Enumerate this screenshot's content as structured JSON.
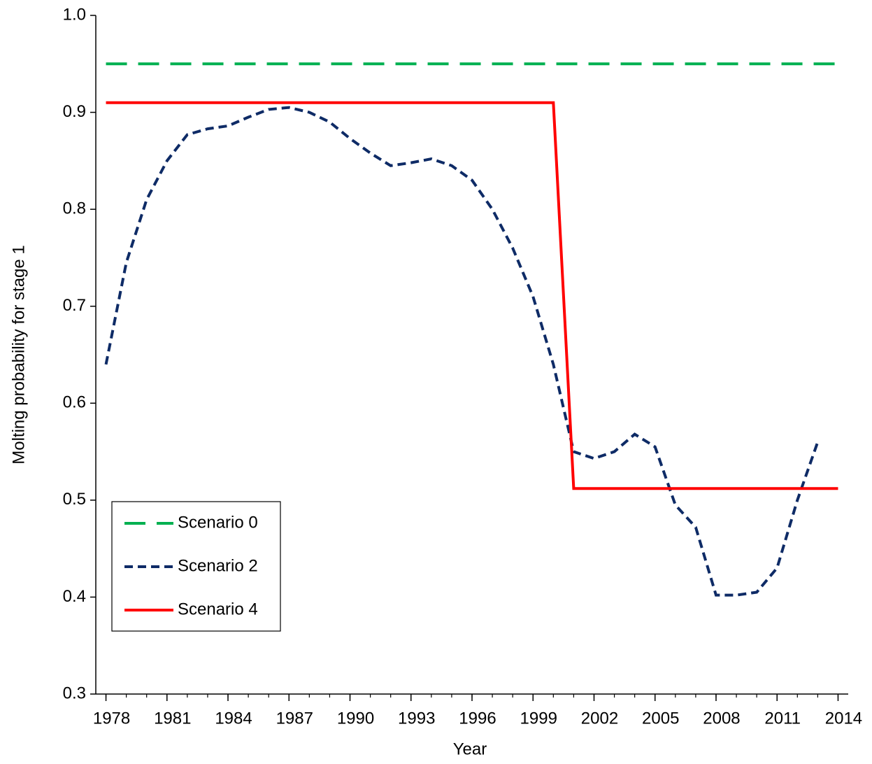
{
  "chart_data": {
    "type": "line",
    "x_label": "Year",
    "y_label": "Molting probability for stage 1",
    "x": [
      1978,
      1979,
      1980,
      1981,
      1982,
      1983,
      1984,
      1985,
      1986,
      1987,
      1988,
      1989,
      1990,
      1991,
      1992,
      1993,
      1994,
      1995,
      1996,
      1997,
      1998,
      1999,
      2000,
      2001,
      2002,
      2003,
      2004,
      2005,
      2006,
      2007,
      2008,
      2009,
      2010,
      2011,
      2012,
      2013,
      2014
    ],
    "xlim": [
      1977.5,
      2014.5
    ],
    "xticks": [
      1978,
      1981,
      1984,
      1987,
      1990,
      1993,
      1996,
      1999,
      2002,
      2005,
      2008,
      2011,
      2014
    ],
    "ylim": [
      0.3,
      1
    ],
    "yticks": [
      0.3,
      0.4,
      0.5,
      0.6,
      0.7,
      0.8,
      0.9,
      {
        "value": 1,
        "label": "1.0"
      }
    ],
    "grid": false,
    "legend": "lower left",
    "series": [
      {
        "name": "Scenario 0",
        "color": "#00b050",
        "dash": "long",
        "values": [
          0.95,
          0.95,
          0.95,
          0.95,
          0.95,
          0.95,
          0.95,
          0.95,
          0.95,
          0.95,
          0.95,
          0.95,
          0.95,
          0.95,
          0.95,
          0.95,
          0.95,
          0.95,
          0.95,
          0.95,
          0.95,
          0.95,
          0.95,
          0.95,
          0.95,
          0.95,
          0.95,
          0.95,
          0.95,
          0.95,
          0.95,
          0.95,
          0.95,
          0.95,
          0.95,
          0.95,
          0.95
        ]
      },
      {
        "name": "Scenario 2",
        "color": "#0e2b66",
        "dash": "short",
        "values": [
          0.64,
          0.745,
          0.81,
          0.85,
          0.877,
          0.883,
          0.886,
          0.895,
          0.903,
          0.905,
          0.9,
          0.89,
          0.873,
          0.858,
          0.845,
          0.848,
          0.852,
          0.845,
          0.83,
          0.8,
          0.76,
          0.71,
          0.64,
          0.55,
          0.543,
          0.55,
          0.568,
          0.555,
          0.495,
          0.472,
          0.402,
          0.402,
          0.405,
          0.43,
          0.5,
          0.56,
          null
        ]
      },
      {
        "name": "Scenario 4",
        "color": "#ff0000",
        "dash": "solid",
        "values": [
          0.91,
          0.91,
          0.91,
          0.91,
          0.91,
          0.91,
          0.91,
          0.91,
          0.91,
          0.91,
          0.91,
          0.91,
          0.91,
          0.91,
          0.91,
          0.91,
          0.91,
          0.91,
          0.91,
          0.91,
          0.91,
          0.91,
          0.91,
          0.512,
          0.512,
          0.512,
          0.512,
          0.512,
          0.512,
          0.512,
          0.512,
          0.512,
          0.512,
          0.512,
          0.512,
          0.512,
          0.512
        ]
      }
    ]
  }
}
